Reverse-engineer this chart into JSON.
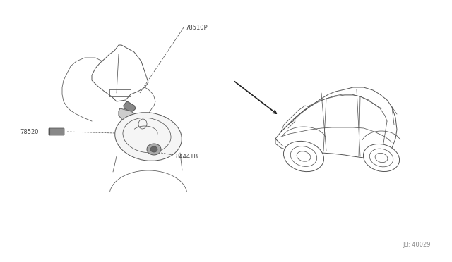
{
  "bg_color": "#ffffff",
  "line_color": "#555555",
  "line_color_dark": "#222222",
  "label_color": "#444444",
  "part_labels": {
    "78510P": [
      0.265,
      0.63
    ],
    "78520": [
      0.025,
      0.51
    ],
    "84441B": [
      0.28,
      0.44
    ]
  },
  "part_code": "J8: 40029",
  "fig_width": 6.4,
  "fig_height": 3.72,
  "dpi": 100
}
